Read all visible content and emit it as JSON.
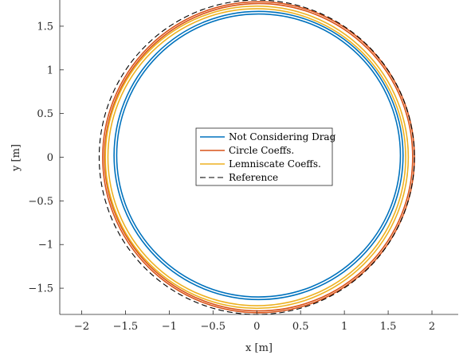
{
  "chart_data": {
    "type": "line",
    "xlabel": "x [m]",
    "ylabel": "y [m]",
    "xlim": [
      -2.25,
      2.3
    ],
    "ylim": [
      -1.8,
      1.8
    ],
    "xticks": [
      -2,
      -1.5,
      -1,
      -0.5,
      0,
      0.5,
      1,
      1.5,
      2
    ],
    "xtick_labels": [
      "−2",
      "−1.5",
      "−1",
      "−0.5",
      "0",
      "0.5",
      "1",
      "1.5",
      "2"
    ],
    "yticks": [
      -1.5,
      -1,
      -0.5,
      0,
      0.5,
      1,
      1.5
    ],
    "ytick_labels": [
      "−1.5",
      "−1",
      "−0.5",
      "0",
      "0.5",
      "1",
      "1.5"
    ],
    "grid": false,
    "legend_position": "center",
    "series": [
      {
        "name": "Not Considering Drag",
        "shape": "circle",
        "center": [
          0.02,
          0.02
        ],
        "radii": [
          1.62,
          1.65
        ],
        "color": "#0072BD",
        "style": "solid"
      },
      {
        "name": "Circle Coeffs.",
        "shape": "circle",
        "center": [
          0.02,
          0.0
        ],
        "radii": [
          1.76,
          1.78
        ],
        "color": "#D95319",
        "style": "solid"
      },
      {
        "name": "Lemniscate Coeffs.",
        "shape": "circle",
        "center": [
          0.0,
          0.0
        ],
        "radii": [
          1.7,
          1.73
        ],
        "color": "#EDB120",
        "style": "solid"
      },
      {
        "name": "Reference",
        "shape": "circle",
        "center": [
          0.0,
          0.0
        ],
        "radii": [
          1.8
        ],
        "color": "#000000",
        "style": "dashed"
      }
    ]
  }
}
